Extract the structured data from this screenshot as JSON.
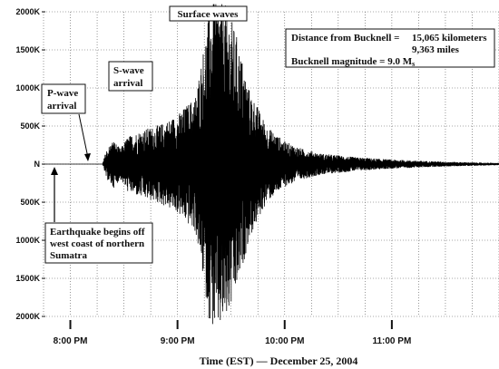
{
  "chart_data": {
    "type": "line",
    "title": "",
    "xlabel": "Time (EST) — December 25, 2004",
    "ylabel": "",
    "x_ticks": [
      "8:00 PM",
      "9:00 PM",
      "10:00 PM",
      "11:00 PM"
    ],
    "y_ticks": [
      "2000K",
      "1500K",
      "1000K",
      "500K",
      "N",
      "500K",
      "1000K",
      "1500K",
      "2000K"
    ],
    "ylim": [
      -2000,
      2000
    ],
    "y_units": "K counts",
    "x_range_hours": [
      19.75,
      24.0
    ],
    "grid": "dotted",
    "series": [
      {
        "x": [
          "19:45",
          "20:18",
          "20:20",
          "20:24",
          "20:28",
          "20:32",
          "20:40",
          "20:50",
          "21:00",
          "21:10",
          "21:15",
          "21:18",
          "21:20",
          "21:24",
          "21:27",
          "21:29",
          "21:33",
          "21:40",
          "21:50",
          "22:00",
          "22:10",
          "22:20",
          "22:40",
          "23:00",
          "23:20",
          "23:40",
          "24:00"
        ],
        "envelope_k": [
          0,
          0,
          180,
          320,
          200,
          360,
          450,
          520,
          650,
          900,
          1600,
          2100,
          2200,
          2200,
          2100,
          2000,
          1700,
          1000,
          500,
          300,
          200,
          140,
          90,
          60,
          40,
          25,
          15
        ]
      }
    ],
    "markers": [
      {
        "label": "P-wave arrival",
        "time": "20:18"
      },
      {
        "label": "S-wave arrival",
        "time": "20:27"
      },
      {
        "label": "Surface waves",
        "time": "21:23"
      },
      {
        "label": "Earthquake begins off west coast of northern Sumatra",
        "time": "19:59"
      }
    ]
  },
  "annotations": {
    "surface_waves": "Surface waves",
    "p_wave_line1": "P-wave",
    "p_wave_line2": "arrival",
    "s_wave_line1": "S-wave",
    "s_wave_line2": "arrival",
    "quake_line1": "Earthquake begins off",
    "quake_line2": "west coast of northern",
    "quake_line3": "Sumatra",
    "info_distance_label": "Distance from Bucknell =",
    "info_distance_km": "15,065 kilometers",
    "info_distance_miles": "9,363 miles",
    "info_magnitude": "Bucknell magnitude = 9.0 M",
    "info_magnitude_sub": "s"
  },
  "colors": {
    "trace": "#000000",
    "grid": "#555555",
    "background": "#ffffff"
  }
}
